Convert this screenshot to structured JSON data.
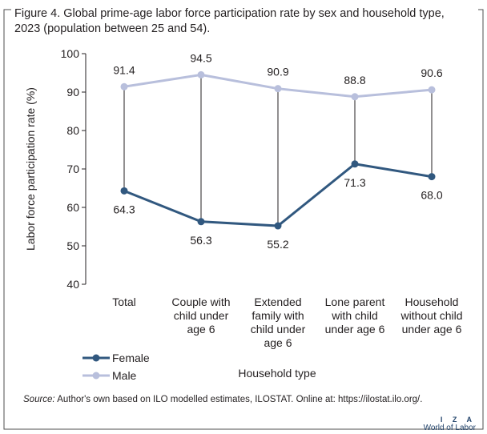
{
  "figure": {
    "title": "Figure 4. Global prime-age labor force participation rate by sex and household type, 2023 (population between 25 and 54).",
    "source_label": "Source:",
    "source_text": "Author's own based on ILO modelled estimates, ILOSTAT. Online at: https://ilostat.ilo.org/.",
    "brand_top": "I Z A",
    "brand_bottom": "World of Labor"
  },
  "colors": {
    "female": "#31587f",
    "male": "#b8bfdc",
    "axis": "#231f20",
    "connector": "#231f20",
    "frame": "#4d4d4d"
  },
  "chart_data": {
    "type": "line",
    "title": "",
    "xlabel": "Household type",
    "ylabel": "Labor force participation rate (%)",
    "ylim": [
      40,
      100
    ],
    "yticks": [
      40,
      50,
      60,
      70,
      80,
      90,
      100
    ],
    "categories": [
      [
        "Total"
      ],
      [
        "Couple with",
        "child under",
        "age 6"
      ],
      [
        "Extended",
        "family with",
        "child under",
        "age 6"
      ],
      [
        "Lone parent",
        "with child",
        "under age 6"
      ],
      [
        "Household",
        "without child",
        "under age 6"
      ]
    ],
    "series": [
      {
        "name": "Female",
        "values": [
          64.3,
          56.3,
          55.2,
          71.3,
          68.0
        ],
        "labels": [
          "64.3",
          "56.3",
          "55.2",
          "71.3",
          "68.0"
        ]
      },
      {
        "name": "Male",
        "values": [
          91.4,
          94.5,
          90.9,
          88.8,
          90.6
        ],
        "labels": [
          "91.4",
          "94.5",
          "90.9",
          "88.8",
          "90.6"
        ]
      }
    ],
    "legend": {
      "position": "bottom-left"
    },
    "grid": false
  }
}
